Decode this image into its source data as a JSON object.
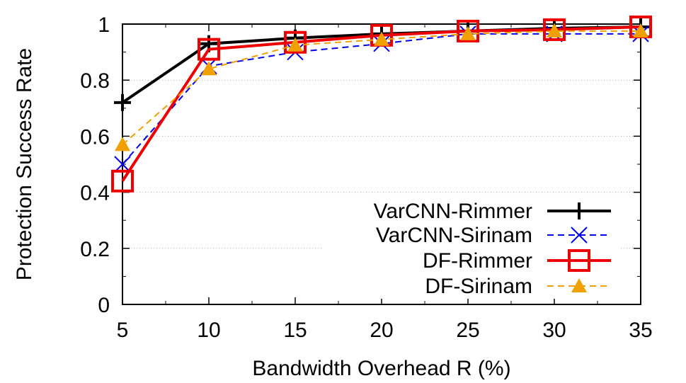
{
  "chart_data": {
    "type": "line",
    "title": "",
    "xlabel": "Bandwidth Overhead R (%)",
    "ylabel": "Protection Success Rate",
    "x": [
      5,
      10,
      15,
      20,
      25,
      30,
      35
    ],
    "xlim": [
      5,
      35
    ],
    "ylim": [
      0,
      1
    ],
    "xticks": [
      "5",
      "10",
      "15",
      "20",
      "25",
      "30",
      "35"
    ],
    "yticks": [
      "0",
      "0.2",
      "0.4",
      "0.6",
      "0.8",
      "1"
    ],
    "grid": "horizontal-dotted",
    "legend_position": "bottom-right",
    "series": [
      {
        "name": "VarCNN-Rimmer",
        "values": [
          0.72,
          0.93,
          0.95,
          0.965,
          0.975,
          0.985,
          0.99
        ],
        "color": "#000000",
        "marker": "plus",
        "dash": "solid"
      },
      {
        "name": "VarCNN-Sirinam",
        "values": [
          0.5,
          0.85,
          0.9,
          0.93,
          0.965,
          0.965,
          0.965
        ],
        "color": "#0000ee",
        "marker": "cross",
        "dash": "dashed"
      },
      {
        "name": "DF-Rimmer",
        "values": [
          0.44,
          0.91,
          0.935,
          0.96,
          0.975,
          0.98,
          0.99
        ],
        "color": "#ee0000",
        "marker": "square",
        "dash": "solid"
      },
      {
        "name": "DF-Sirinam",
        "values": [
          0.57,
          0.84,
          0.925,
          0.945,
          0.965,
          0.975,
          0.975
        ],
        "color": "#f0a000",
        "marker": "triangle",
        "dash": "dashed"
      }
    ]
  }
}
